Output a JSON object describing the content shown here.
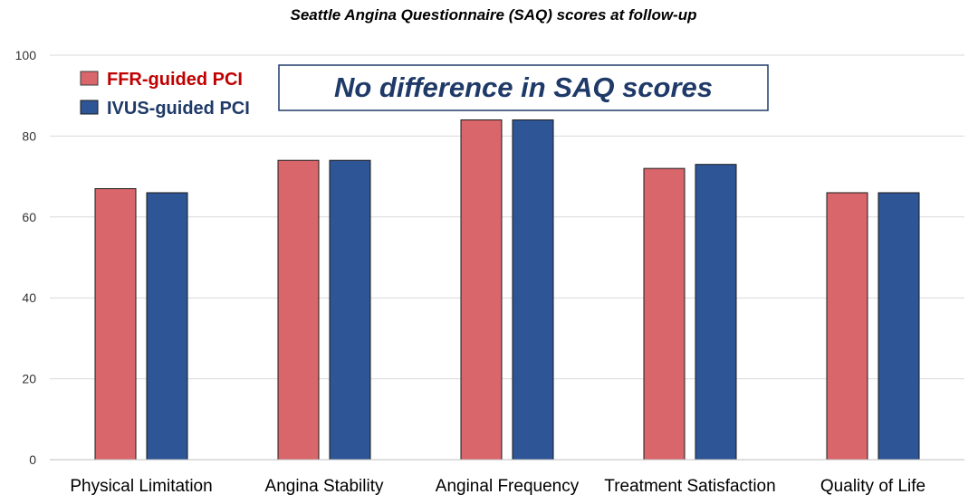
{
  "chart_data": {
    "type": "bar",
    "title": "Seattle Angina Questionnaire (SAQ) scores at follow-up",
    "categories": [
      "Physical Limitation",
      "Angina Stability",
      "Anginal Frequency",
      "Treatment Satisfaction",
      "Quality of Life"
    ],
    "series": [
      {
        "name": "FFR-guided PCI",
        "color": "#d9666a",
        "values": [
          67,
          74,
          84,
          72,
          66
        ]
      },
      {
        "name": "IVUS-guided PCI",
        "color": "#2e5596",
        "values": [
          66,
          74,
          84,
          73,
          66
        ]
      }
    ],
    "ylim": [
      0,
      100
    ],
    "yticks": [
      0,
      20,
      40,
      60,
      80,
      100
    ],
    "grid": true,
    "legend_position": "top-left",
    "legend_colors": {
      "FFR-guided PCI": "#c00000",
      "IVUS-guided PCI": "#1f3a68"
    },
    "annotation": "No difference in SAQ scores"
  }
}
